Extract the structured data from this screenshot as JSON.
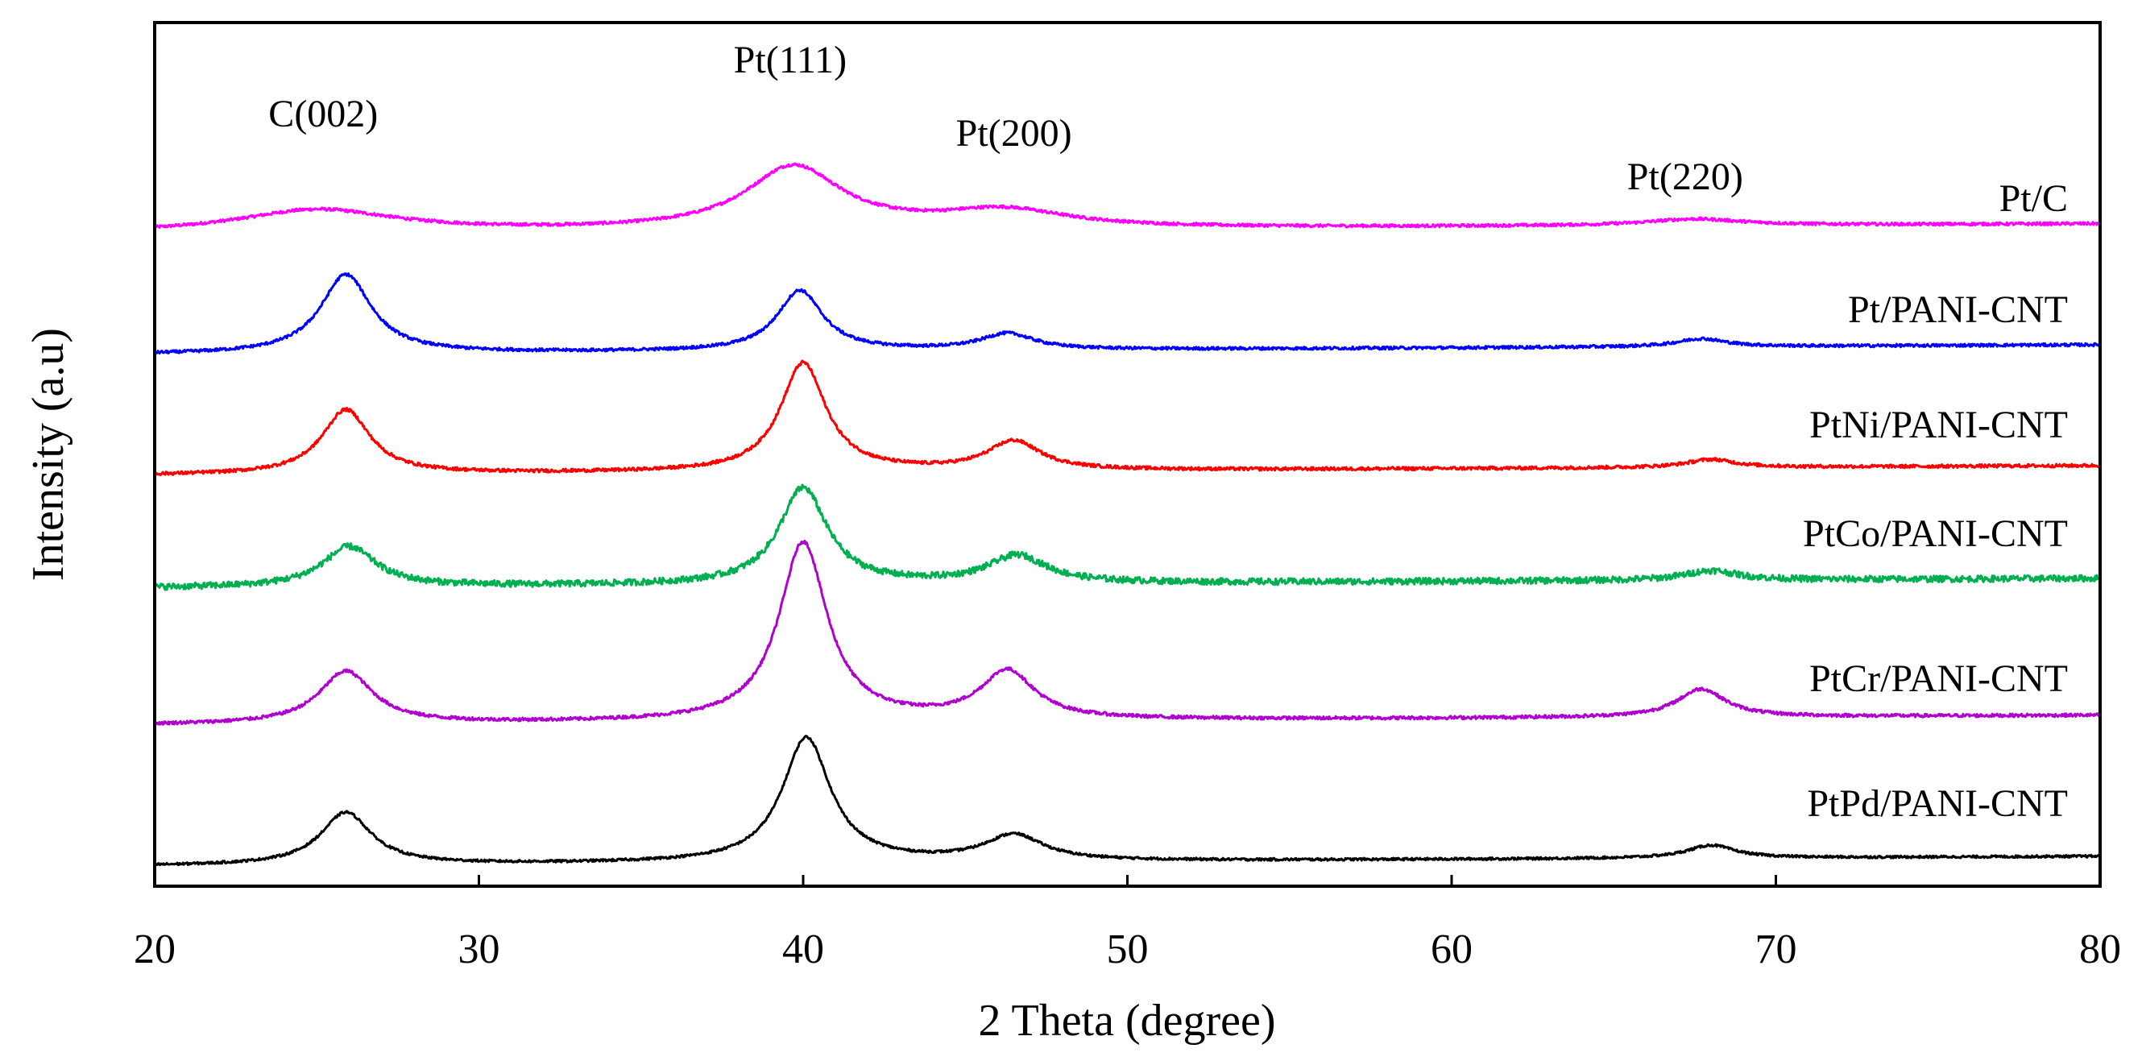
{
  "chart_data": {
    "type": "line",
    "title": "",
    "xlabel": "2 Theta (degree)",
    "ylabel": "Intensity (a.u)",
    "xlim": [
      20,
      80
    ],
    "xticks": [
      20,
      30,
      40,
      50,
      60,
      70,
      80
    ],
    "yticks_shown": false,
    "peak_annotations": [
      {
        "text": "C(002)",
        "x": 25.2
      },
      {
        "text": "Pt(111)",
        "x": 39.6
      },
      {
        "text": "Pt(200)",
        "x": 46.5
      },
      {
        "text": "Pt(220)",
        "x": 67.2
      }
    ],
    "series": [
      {
        "name": "Pt/C",
        "color": "#ff00ff",
        "baseline": 0.8,
        "base_slope": 0.002,
        "noise": 0.018,
        "peaks": [
          {
            "center": 25.0,
            "height": 0.28,
            "width": 3.0
          },
          {
            "center": 39.7,
            "height": 0.78,
            "width": 1.8
          },
          {
            "center": 46.2,
            "height": 0.22,
            "width": 2.4
          },
          {
            "center": 67.5,
            "height": 0.08,
            "width": 1.8
          }
        ]
      },
      {
        "name": "Pt/PANI-CNT",
        "color": "#0000ff",
        "baseline": 0.92,
        "base_slope": 0.002,
        "noise": 0.018,
        "peaks": [
          {
            "center": 25.9,
            "height": 0.98,
            "width": 0.95
          },
          {
            "center": 39.9,
            "height": 0.75,
            "width": 0.85
          },
          {
            "center": 46.3,
            "height": 0.2,
            "width": 1.0
          },
          {
            "center": 67.7,
            "height": 0.1,
            "width": 0.9
          }
        ]
      },
      {
        "name": "PtNi/PANI-CNT",
        "color": "#ff0000",
        "baseline": 0.92,
        "base_slope": 0.002,
        "noise": 0.02,
        "peaks": [
          {
            "center": 25.9,
            "height": 0.8,
            "width": 0.9
          },
          {
            "center": 40.0,
            "height": 1.35,
            "width": 0.85
          },
          {
            "center": 46.5,
            "height": 0.36,
            "width": 1.0
          },
          {
            "center": 68.0,
            "height": 0.1,
            "width": 0.9
          }
        ]
      },
      {
        "name": "PtCo/PANI-CNT",
        "color": "#00b050",
        "baseline": 0.92,
        "base_slope": 0.002,
        "noise": 0.04,
        "peaks": [
          {
            "center": 26.0,
            "height": 0.5,
            "width": 1.0
          },
          {
            "center": 40.0,
            "height": 1.2,
            "width": 0.9
          },
          {
            "center": 46.6,
            "height": 0.34,
            "width": 1.1
          },
          {
            "center": 68.0,
            "height": 0.12,
            "width": 1.0
          }
        ]
      },
      {
        "name": "PtCr/PANI-CNT",
        "color": "#b000d0",
        "baseline": 0.92,
        "base_slope": 0.002,
        "noise": 0.02,
        "peaks": [
          {
            "center": 25.9,
            "height": 0.65,
            "width": 1.0
          },
          {
            "center": 40.0,
            "height": 2.22,
            "width": 0.9
          },
          {
            "center": 46.3,
            "height": 0.6,
            "width": 1.0
          },
          {
            "center": 67.7,
            "height": 0.35,
            "width": 0.9
          }
        ]
      },
      {
        "name": "PtPd/PANI-CNT",
        "color": "#000000",
        "baseline": 0.92,
        "base_slope": 0.002,
        "noise": 0.015,
        "peaks": [
          {
            "center": 25.9,
            "height": 0.65,
            "width": 0.95
          },
          {
            "center": 40.1,
            "height": 1.55,
            "width": 0.9
          },
          {
            "center": 46.5,
            "height": 0.32,
            "width": 1.1
          },
          {
            "center": 68.0,
            "height": 0.16,
            "width": 0.9
          }
        ]
      }
    ]
  }
}
